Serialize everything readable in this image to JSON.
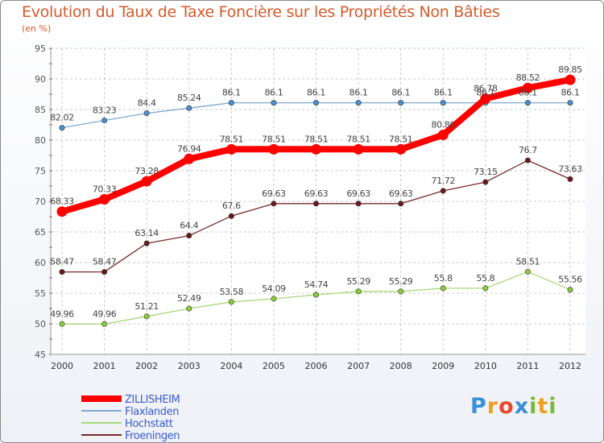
{
  "header": {
    "title": "Evolution du Taux de Taxe Foncière sur les Propriétés Non Bâties",
    "subtitle": "(en %)"
  },
  "logo": {
    "text": "Proxiti",
    "letters": [
      "P",
      "r",
      "o",
      "x",
      "i",
      "t",
      "i"
    ],
    "colors": [
      "#3b8fd6",
      "#f0a020",
      "#e54a2a",
      "#3b8fd6",
      "#7ab83a",
      "#f0a020",
      "#7ab83a"
    ]
  },
  "chart_data": {
    "type": "line",
    "title": "Evolution du Taux de Taxe Foncière sur les Propriétés Non Bâties",
    "ylabel": "(en %)",
    "x": [
      "2000",
      "2001",
      "2002",
      "2003",
      "2004",
      "2005",
      "2006",
      "2007",
      "2008",
      "2009",
      "2010",
      "2011",
      "2012"
    ],
    "ylim": [
      45,
      95
    ],
    "yticks": [
      "45",
      "50",
      "55",
      "60",
      "65",
      "70",
      "75",
      "80",
      "85",
      "90",
      "95"
    ],
    "grid": true,
    "legend": "bottom-left",
    "series": [
      {
        "name": "ZILLISHEIM",
        "color": "#ff0000",
        "point_color": "#ff0000",
        "emphasis": true,
        "values": [
          68.33,
          70.33,
          73.28,
          76.94,
          78.51,
          78.51,
          78.51,
          78.51,
          78.51,
          80.86,
          86.78,
          88.52,
          89.85
        ],
        "labels": [
          "68.33",
          "70.33",
          "73.28",
          "76.94",
          "78.51",
          "78.51",
          "78.51",
          "78.51",
          "78.51",
          "80.86",
          "86.78",
          "88.52",
          "89.85"
        ]
      },
      {
        "name": "Flaxlanden",
        "color": "#7fa8d0",
        "point_color": "#4a90d0",
        "values": [
          82.02,
          83.23,
          84.4,
          85.24,
          86.1,
          86.1,
          86.1,
          86.1,
          86.1,
          86.1,
          86.1,
          86.1,
          86.1
        ],
        "labels": [
          "82.02",
          "83.23",
          "84.4",
          "85.24",
          "86.1",
          "86.1",
          "86.1",
          "86.1",
          "86.1",
          "86.1",
          "86.1",
          "86.1",
          "86.1"
        ]
      },
      {
        "name": "Hochstatt",
        "color": "#a8d87a",
        "point_color": "#8acc3a",
        "values": [
          49.96,
          49.96,
          51.21,
          52.49,
          53.58,
          54.09,
          54.74,
          55.29,
          55.29,
          55.8,
          55.8,
          58.51,
          55.56
        ],
        "labels": [
          "49.96",
          "49.96",
          "51.21",
          "52.49",
          "53.58",
          "54.09",
          "54.74",
          "55.29",
          "55.29",
          "55.8",
          "55.8",
          "58.51",
          "55.56"
        ]
      },
      {
        "name": "Froeningen",
        "color": "#7a2a2a",
        "point_color": "#6a1a1a",
        "values": [
          58.47,
          58.47,
          63.14,
          64.4,
          67.6,
          69.63,
          69.63,
          69.63,
          69.63,
          71.72,
          73.15,
          76.7,
          73.63
        ],
        "labels": [
          "58.47",
          "58.47",
          "63.14",
          "64.4",
          "67.6",
          "69.63",
          "69.63",
          "69.63",
          "69.63",
          "71.72",
          "73.15",
          "76.7",
          "73.63"
        ]
      }
    ]
  }
}
